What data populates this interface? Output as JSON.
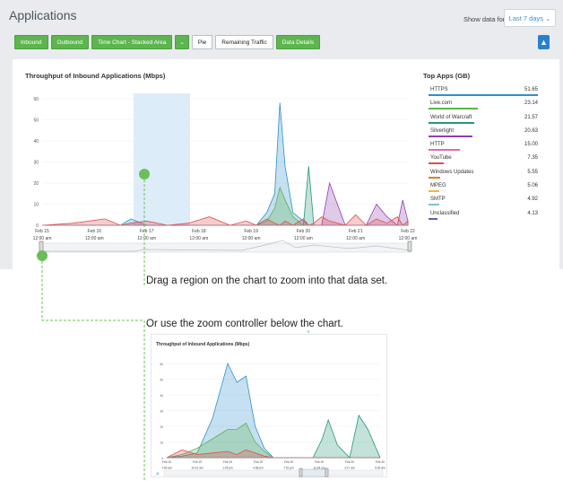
{
  "app": {
    "title": "Applications"
  },
  "header": {
    "show_label": "Show data for",
    "range_value": "Last 7 days"
  },
  "toolbar": {
    "inbound": "Inbound",
    "outbound": "Outbound",
    "time_chart": "Time Chart - Stacked Area",
    "pie": "Pie",
    "remaining": "Remaining Traffic",
    "details": "Data Details"
  },
  "chart_title": "Throughput of Inbound Applications (Mbps)",
  "top_apps": {
    "title": "Top Apps (GB)",
    "items": [
      {
        "name": "HTTPS",
        "value": "51.65",
        "color": "#2f8fcb"
      },
      {
        "name": "Live.com",
        "value": "23.14",
        "color": "#5cb44d"
      },
      {
        "name": "World of Warcraft",
        "value": "21.57",
        "color": "#25977a"
      },
      {
        "name": "Silverlight",
        "value": "20.63",
        "color": "#8e3fb0"
      },
      {
        "name": "HTTP",
        "value": "15.00",
        "color": "#e06ab5"
      },
      {
        "name": "YouTube",
        "value": "7.35",
        "color": "#e04c4c"
      },
      {
        "name": "Windows Updates",
        "value": "5.55",
        "color": "#e07b36"
      },
      {
        "name": "MPEG",
        "value": "5.06",
        "color": "#f0b640"
      },
      {
        "name": "SMTP",
        "value": "4.92",
        "color": "#7fc0e0"
      },
      {
        "name": "Unclassified",
        "value": "4.13",
        "color": "#6e58a8"
      }
    ]
  },
  "callouts": {
    "drag": "Drag a region on the chart to zoom into that data set.",
    "zoom": "Or use the zoom controller below the chart."
  },
  "chart_data": [
    {
      "type": "area",
      "title": "Throughput of Inbound Applications (Mbps)",
      "ylim": [
        0,
        60
      ],
      "yticks": [
        "0",
        "10",
        "20",
        "30",
        "40",
        "50",
        "60"
      ],
      "xticks": [
        {
          "date": "Feb 15",
          "time": "12:00 am"
        },
        {
          "date": "Feb 16",
          "time": "12:00 am"
        },
        {
          "date": "Feb 17",
          "time": "12:00 am"
        },
        {
          "date": "Feb 18",
          "time": "12:00 am"
        },
        {
          "date": "Feb 19",
          "time": "12:00 am"
        },
        {
          "date": "Feb 20",
          "time": "12:00 am"
        },
        {
          "date": "Feb 21",
          "time": "12:00 am"
        },
        {
          "date": "Feb 22",
          "time": "12:00 am"
        }
      ],
      "x": [
        0,
        0.6,
        1.2,
        1.5,
        1.7,
        2.0,
        2.4,
        2.8,
        3.2,
        3.6,
        3.9,
        4.1,
        4.3,
        4.45,
        4.55,
        4.65,
        4.8,
        5.0,
        5.1,
        5.2,
        5.35,
        5.5,
        5.8,
        6.0,
        6.2,
        6.4,
        6.6,
        6.8,
        6.9,
        7.0
      ],
      "series": [
        {
          "name": "HTTPS",
          "color": "#2f8fcb",
          "values": [
            0,
            0,
            0,
            0,
            3,
            0,
            0,
            0,
            0,
            0,
            0,
            0,
            6,
            15,
            58,
            28,
            6,
            2,
            0,
            0,
            0,
            0,
            0,
            0,
            0,
            0,
            0,
            0,
            0,
            0
          ]
        },
        {
          "name": "Live.com",
          "color": "#5cb44d",
          "values": [
            0,
            0,
            0,
            0,
            0,
            0,
            0,
            0,
            0,
            0,
            0,
            0,
            2,
            8,
            18,
            12,
            4,
            0,
            0,
            0,
            0,
            0,
            0,
            0,
            0,
            0,
            0,
            0,
            0,
            0
          ]
        },
        {
          "name": "World of Warcraft",
          "color": "#25977a",
          "values": [
            0,
            0,
            0,
            0,
            0,
            0,
            0,
            0,
            0,
            0,
            0,
            0,
            0,
            0,
            0,
            0,
            0,
            0,
            28,
            0,
            0,
            0,
            0,
            0,
            0,
            0,
            0,
            0,
            0,
            0
          ]
        },
        {
          "name": "Silverlight",
          "color": "#8e3fb0",
          "values": [
            0,
            0,
            0,
            0,
            0,
            0,
            0,
            0,
            0,
            0,
            0,
            0,
            0,
            0,
            0,
            0,
            0,
            0,
            0,
            0,
            0,
            20,
            0,
            0,
            0,
            10,
            4,
            0,
            12,
            2
          ]
        },
        {
          "name": "YouTube",
          "color": "#e04c4c",
          "values": [
            0,
            1,
            3,
            0,
            1,
            2,
            0,
            1,
            4,
            0,
            2,
            0,
            3,
            1,
            0,
            2,
            0,
            3,
            0,
            1,
            4,
            2,
            0,
            5,
            0,
            3,
            1,
            4,
            0,
            2
          ]
        }
      ]
    },
    {
      "type": "area",
      "title": "Throughput of Inbound Applications (Mbps)",
      "ylim": [
        0,
        60
      ],
      "yticks": [
        "0",
        "10",
        "20",
        "30",
        "40",
        "50",
        "60"
      ],
      "xticks": [
        {
          "date": "Feb 19",
          "time": "7:00 am"
        },
        {
          "date": "Feb 19",
          "time": "10:12 am"
        },
        {
          "date": "Feb 19",
          "time": "1:25 pm"
        },
        {
          "date": "Feb 19",
          "time": "4:38 pm"
        },
        {
          "date": "Feb 19",
          "time": "7:51 pm"
        },
        {
          "date": "Feb 19",
          "time": "11:04 pm"
        },
        {
          "date": "Feb 20",
          "time": "2:17 am"
        },
        {
          "date": "Feb 20",
          "time": "5:30 am"
        }
      ],
      "x": [
        0,
        0.5,
        1.0,
        1.5,
        2.0,
        2.3,
        2.6,
        2.9,
        3.2,
        3.5,
        4.0,
        4.5,
        4.8,
        5.1,
        5.3,
        5.6,
        6.0,
        6.3,
        6.6,
        7.0
      ],
      "series": [
        {
          "name": "HTTPS",
          "color": "#2f8fcb",
          "values": [
            0,
            1,
            3,
            25,
            60,
            48,
            52,
            20,
            6,
            0,
            0,
            0,
            0,
            0,
            0,
            0,
            0,
            0,
            0,
            0
          ]
        },
        {
          "name": "Live.com",
          "color": "#5cb44d",
          "values": [
            0,
            2,
            6,
            12,
            18,
            18,
            22,
            10,
            4,
            0,
            0,
            0,
            0,
            0,
            0,
            0,
            0,
            0,
            0,
            0
          ]
        },
        {
          "name": "World of Warcraft",
          "color": "#25977a",
          "values": [
            0,
            0,
            0,
            0,
            0,
            0,
            0,
            0,
            0,
            0,
            0,
            0,
            0,
            12,
            24,
            8,
            0,
            27,
            18,
            0
          ]
        },
        {
          "name": "YouTube",
          "color": "#e04c4c",
          "values": [
            0,
            5,
            2,
            3,
            4,
            2,
            5,
            3,
            1,
            0,
            0,
            0,
            0,
            0,
            0,
            0,
            0,
            0,
            0,
            0
          ]
        }
      ]
    }
  ]
}
